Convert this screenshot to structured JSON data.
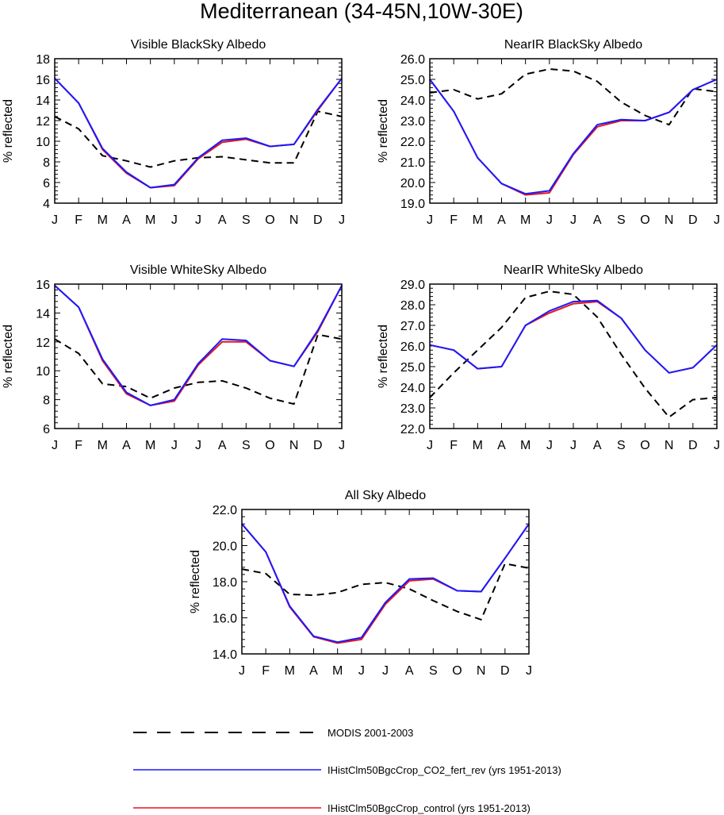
{
  "page_title": "Mediterranean (34-45N,10W-30E)",
  "months": [
    "J",
    "F",
    "M",
    "A",
    "M",
    "J",
    "J",
    "A",
    "S",
    "O",
    "N",
    "D",
    "J"
  ],
  "colors": {
    "modis": "#000000",
    "co2": "#1a1aff",
    "control": "#e8141e"
  },
  "legend": {
    "modis": "MODIS 2001-2003",
    "co2": "IHistClm50BgcCrop_CO2_fert_rev (yrs 1951-2013)",
    "control": "IHistClm50BgcCrop_control (yrs 1951-2013)"
  },
  "chart_data": [
    {
      "type": "line",
      "title": "Visible BlackSky Albedo",
      "ylabel": "% reflected",
      "ylim": [
        4,
        18
      ],
      "yticks": [
        4,
        6,
        8,
        10,
        12,
        14,
        16,
        18
      ],
      "ydecimals": 0,
      "categories": [
        "J",
        "F",
        "M",
        "A",
        "M",
        "J",
        "J",
        "A",
        "S",
        "O",
        "N",
        "D",
        "J"
      ],
      "series": [
        {
          "name": "MODIS 2001-2003",
          "key": "modis",
          "values": [
            12.4,
            11.2,
            8.6,
            8.1,
            7.5,
            8.1,
            8.4,
            8.5,
            8.2,
            7.9,
            7.9,
            12.9,
            12.4
          ]
        },
        {
          "name": "IHistClm50BgcCrop_control (yrs 1951-2013)",
          "key": "control",
          "values": [
            16.1,
            13.7,
            9.2,
            6.9,
            5.5,
            5.7,
            8.3,
            9.9,
            10.2,
            9.5,
            9.7,
            13.0,
            16.1
          ]
        },
        {
          "name": "IHistClm50BgcCrop_CO2_fert_rev (yrs 1951-2013)",
          "key": "co2",
          "values": [
            16.1,
            13.7,
            9.3,
            7.0,
            5.5,
            5.8,
            8.4,
            10.1,
            10.3,
            9.5,
            9.7,
            13.1,
            16.1
          ]
        }
      ]
    },
    {
      "type": "line",
      "title": "NearIR BlackSky Albedo",
      "ylabel": "% reflected",
      "ylim": [
        19,
        26
      ],
      "yticks": [
        19,
        20,
        21,
        22,
        23,
        24,
        25,
        26
      ],
      "ydecimals": 1,
      "categories": [
        "J",
        "F",
        "M",
        "A",
        "M",
        "J",
        "J",
        "A",
        "S",
        "O",
        "N",
        "D",
        "J"
      ],
      "series": [
        {
          "name": "MODIS 2001-2003",
          "key": "modis",
          "values": [
            24.35,
            24.5,
            24.05,
            24.3,
            25.25,
            25.5,
            25.4,
            24.9,
            23.9,
            23.25,
            22.8,
            24.55,
            24.4
          ]
        },
        {
          "name": "IHistClm50BgcCrop_control (yrs 1951-2013)",
          "key": "control",
          "values": [
            25.0,
            23.45,
            21.2,
            19.95,
            19.4,
            19.5,
            21.35,
            22.7,
            23.0,
            23.0,
            23.4,
            24.5,
            25.0
          ]
        },
        {
          "name": "IHistClm50BgcCrop_CO2_fert_rev (yrs 1951-2013)",
          "key": "co2",
          "values": [
            25.0,
            23.45,
            21.2,
            19.95,
            19.45,
            19.6,
            21.4,
            22.8,
            23.05,
            23.0,
            23.4,
            24.5,
            25.0
          ]
        }
      ]
    },
    {
      "type": "line",
      "title": "Visible WhiteSky Albedo",
      "ylabel": "% reflected",
      "ylim": [
        6,
        16
      ],
      "yticks": [
        6,
        8,
        10,
        12,
        14,
        16
      ],
      "ydecimals": 0,
      "categories": [
        "J",
        "F",
        "M",
        "A",
        "M",
        "J",
        "J",
        "A",
        "S",
        "O",
        "N",
        "D",
        "J"
      ],
      "series": [
        {
          "name": "MODIS 2001-2003",
          "key": "modis",
          "values": [
            12.2,
            11.2,
            9.1,
            8.9,
            8.1,
            8.8,
            9.2,
            9.3,
            8.8,
            8.1,
            7.7,
            12.5,
            12.2
          ]
        },
        {
          "name": "IHistClm50BgcCrop_control (yrs 1951-2013)",
          "key": "control",
          "values": [
            15.9,
            14.4,
            10.7,
            8.4,
            7.6,
            7.9,
            10.4,
            12.0,
            12.0,
            10.7,
            10.3,
            12.7,
            15.9
          ]
        },
        {
          "name": "IHistClm50BgcCrop_CO2_fert_rev (yrs 1951-2013)",
          "key": "co2",
          "values": [
            15.9,
            14.4,
            10.8,
            8.5,
            7.6,
            8.0,
            10.5,
            12.2,
            12.1,
            10.7,
            10.3,
            12.8,
            15.9
          ]
        }
      ]
    },
    {
      "type": "line",
      "title": "NearIR WhiteSky Albedo",
      "ylabel": "% reflected",
      "ylim": [
        22,
        29
      ],
      "yticks": [
        22,
        23,
        24,
        25,
        26,
        27,
        28,
        29
      ],
      "ydecimals": 1,
      "categories": [
        "J",
        "F",
        "M",
        "A",
        "M",
        "J",
        "J",
        "A",
        "S",
        "O",
        "N",
        "D",
        "J"
      ],
      "series": [
        {
          "name": "MODIS 2001-2003",
          "key": "modis",
          "values": [
            23.5,
            24.7,
            25.8,
            26.9,
            28.35,
            28.65,
            28.5,
            27.4,
            25.6,
            23.95,
            22.55,
            23.4,
            23.5
          ]
        },
        {
          "name": "IHistClm50BgcCrop_control (yrs 1951-2013)",
          "key": "control",
          "values": [
            26.05,
            25.8,
            24.9,
            25.0,
            27.0,
            27.6,
            28.05,
            28.15,
            27.35,
            25.8,
            24.7,
            24.95,
            26.05
          ]
        },
        {
          "name": "IHistClm50BgcCrop_CO2_fert_rev (yrs 1951-2013)",
          "key": "co2",
          "values": [
            26.05,
            25.8,
            24.9,
            25.0,
            27.0,
            27.7,
            28.15,
            28.2,
            27.35,
            25.8,
            24.7,
            24.95,
            26.05
          ]
        }
      ]
    },
    {
      "type": "line",
      "title": "All Sky Albedo",
      "ylabel": "% reflected",
      "ylim": [
        14,
        22
      ],
      "yticks": [
        14,
        16,
        18,
        20,
        22
      ],
      "ydecimals": 1,
      "categories": [
        "J",
        "F",
        "M",
        "A",
        "M",
        "J",
        "J",
        "A",
        "S",
        "O",
        "N",
        "D",
        "J"
      ],
      "series": [
        {
          "name": "MODIS 2001-2003",
          "key": "modis",
          "values": [
            18.7,
            18.45,
            17.3,
            17.25,
            17.4,
            17.85,
            17.95,
            17.6,
            16.95,
            16.35,
            15.9,
            19.0,
            18.75
          ]
        },
        {
          "name": "IHistClm50BgcCrop_control (yrs 1951-2013)",
          "key": "control",
          "values": [
            21.2,
            19.65,
            16.6,
            14.95,
            14.6,
            14.8,
            16.75,
            18.05,
            18.15,
            17.5,
            17.45,
            19.3,
            21.2
          ]
        },
        {
          "name": "IHistClm50BgcCrop_CO2_fert_rev (yrs 1951-2013)",
          "key": "co2",
          "values": [
            21.2,
            19.65,
            16.65,
            14.98,
            14.65,
            14.9,
            16.85,
            18.15,
            18.2,
            17.5,
            17.45,
            19.3,
            21.2
          ]
        }
      ]
    }
  ]
}
